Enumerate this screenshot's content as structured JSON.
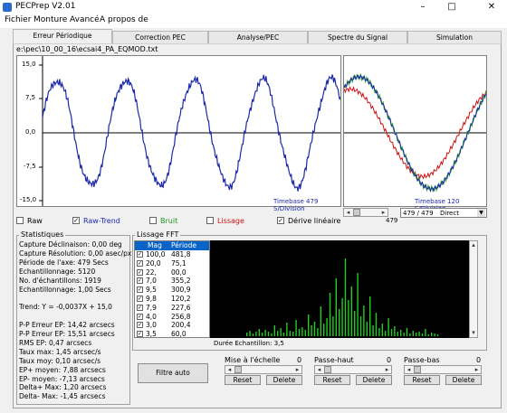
{
  "window": {
    "title": "PECPrep V2.01",
    "minimize": "–",
    "maximize": "□",
    "close": "✕"
  },
  "menu": [
    "Fichier",
    "Monture",
    "Avancé",
    "A propos de"
  ],
  "tabs": [
    "Erreur Périodique",
    "Correction PEC",
    "Analyse/PEC",
    "Spectre du Signal",
    "Simulation"
  ],
  "active_tab": 0,
  "file_path": "e:\\pec\\10_00_16\\ecsai4_PA_EQMOD.txt",
  "main_graph": {
    "y_ticks": [
      "15,0",
      "7,5",
      "0,0",
      "-7,5",
      "-15,0"
    ],
    "timebase": "Timebase 479 S/Division",
    "line_color": "#1c2aa8"
  },
  "side_graph": {
    "timebase": "Timebase 120 S/Division",
    "scroll_value": "479",
    "combo_value": "479 / 479",
    "combo_option": "Direct"
  },
  "checkboxes": {
    "raw": {
      "label": "Raw",
      "checked": false,
      "color": "#000000"
    },
    "raw_trend": {
      "label": "Raw-Trend",
      "checked": true,
      "color": "#1c2aa8"
    },
    "bruit": {
      "label": "Bruit",
      "checked": false,
      "color": "#1f9a1f"
    },
    "lissage": {
      "label": "Lissage",
      "checked": false,
      "color": "#cc1111"
    },
    "derive": {
      "label": "Dérive linéaire",
      "checked": true,
      "color": "#000000"
    }
  },
  "stats": {
    "title": "Statistiques",
    "rows": [
      "Capture Déclinaison: 0,00 deg",
      "Capture Résolution: 0,00 asec/px",
      "Période de l'axe:   479 Secs",
      "Echantillonnage:    5120",
      "No. d'échantillons: 1919",
      "Echantillonnage:    1,00 Secs",
      "",
      "Trend: Y = -0,0037X + 15,0",
      "",
      "P-P Erreur EP:      14,42 arcsecs",
      "P-P Erreur EP:      15,51 arcsecs",
      "RMS EP:             0,47 arcsecs",
      "Taux max:           1,45 arcsec/s",
      "Taux moy:           0,10 arcsec/s",
      "EP+ moyen:          7,88 arcsecs",
      "EP- moyen:          -7,13 arcsecs",
      "Delta+ Max:         1,20 arcsecs",
      "Delta- Max:         -1,45 arcsecs"
    ]
  },
  "lissage": {
    "title": "Lissage FFT",
    "header": [
      "Mag",
      "Période"
    ],
    "rows": [
      {
        "mag": "100,0",
        "period": "481,8",
        "checked": true
      },
      {
        "mag": "20,0",
        "period": "75,1",
        "checked": true
      },
      {
        "mag": "22,",
        "period": "00,0",
        "checked": true
      },
      {
        "mag": "7,0",
        "period": "355,2",
        "checked": true
      },
      {
        "mag": "9,5",
        "period": "300,9",
        "checked": true
      },
      {
        "mag": "9,8",
        "period": "120,2",
        "checked": true
      },
      {
        "mag": "7,9",
        "period": "227,6",
        "checked": true
      },
      {
        "mag": "4,0",
        "period": "256,8",
        "checked": true
      },
      {
        "mag": "3,0",
        "period": "200,4",
        "checked": true
      },
      {
        "mag": "3,5",
        "period": "60,0",
        "checked": true
      }
    ],
    "spectrum_label": "Durée Echantillon: 3,5",
    "bar_color": "#22cc22"
  },
  "filter_button": "Filtre auto",
  "sliders": [
    {
      "label": "Mise à l'échelle",
      "value": "0",
      "reset": "Reset",
      "delete": "Delete"
    },
    {
      "label": "Passe-haut",
      "value": "0",
      "reset": "Reset",
      "delete": "Delete"
    },
    {
      "label": "Passe-bas",
      "value": "0",
      "reset": "Reset",
      "delete": "Delete"
    }
  ]
}
